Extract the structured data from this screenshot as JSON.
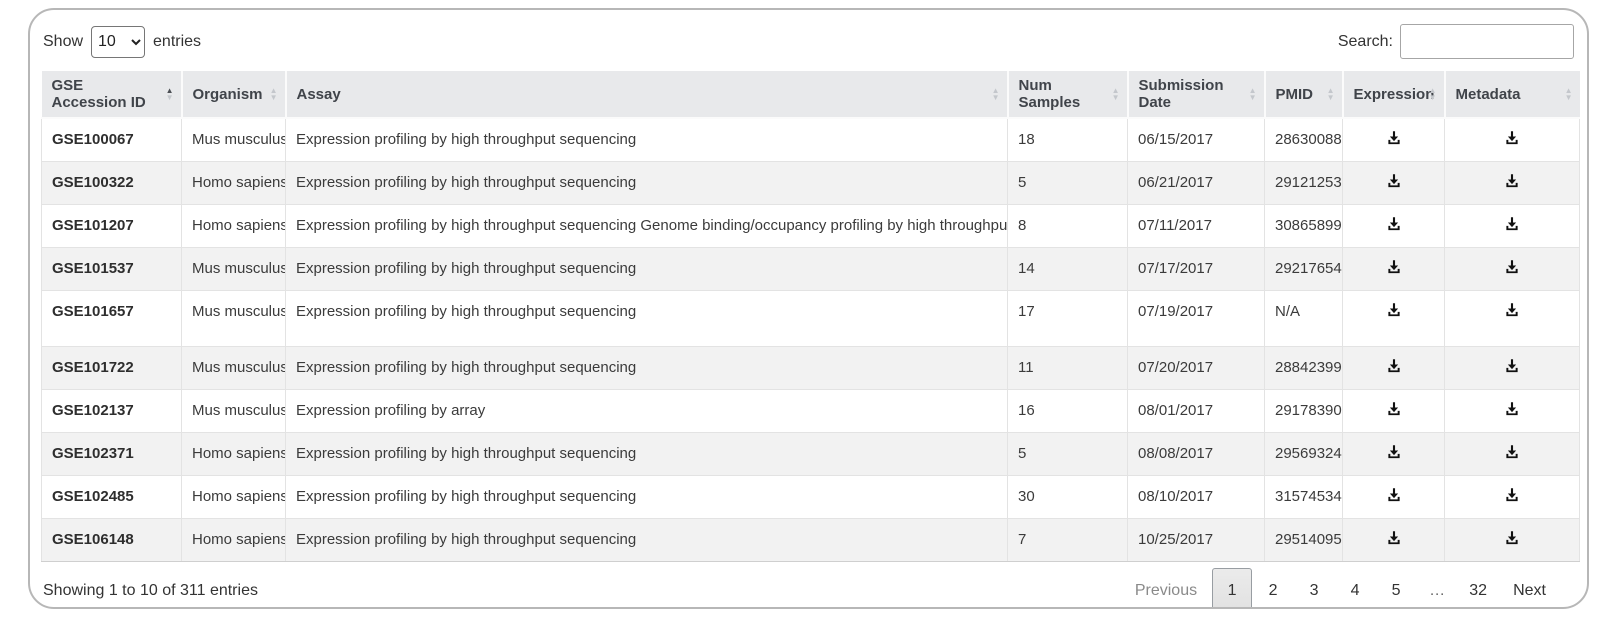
{
  "controls": {
    "show_label": "Show",
    "entries_value": "10",
    "entries_label": "entries",
    "search_label": "Search:",
    "search_value": ""
  },
  "table": {
    "columns": [
      {
        "label": "GSE Accession ID",
        "sort": "asc"
      },
      {
        "label": "Organism",
        "sort": "none"
      },
      {
        "label": "Assay",
        "sort": "none"
      },
      {
        "label": "Num Samples",
        "sort": "none"
      },
      {
        "label": "Submission Date",
        "sort": "none"
      },
      {
        "label": "PMID",
        "sort": "none"
      },
      {
        "label": "Expression",
        "sort": "none"
      },
      {
        "label": "Metadata",
        "sort": "none"
      }
    ],
    "rows": [
      [
        "GSE100067",
        "Mus musculus",
        "Expression profiling by high throughput sequencing",
        "18",
        "06/15/2017",
        "28630088"
      ],
      [
        "GSE100322",
        "Homo sapiens",
        "Expression profiling by high throughput sequencing",
        "5",
        "06/21/2017",
        "29121253"
      ],
      [
        "GSE101207",
        "Homo sapiens",
        "Expression profiling by high throughput sequencing Genome binding/occupancy profiling by high throughput sequencing",
        "8",
        "07/11/2017",
        "30865899"
      ],
      [
        "GSE101537",
        "Mus musculus",
        "Expression profiling by high throughput sequencing",
        "14",
        "07/17/2017",
        "29217654"
      ],
      [
        "GSE101657",
        "Mus musculus",
        "Expression profiling by high throughput sequencing",
        "17",
        "07/19/2017",
        "N/A"
      ],
      [
        "GSE101722",
        "Mus musculus",
        "Expression profiling by high throughput sequencing",
        "11",
        "07/20/2017",
        "28842399"
      ],
      [
        "GSE102137",
        "Mus musculus",
        "Expression profiling by array",
        "16",
        "08/01/2017",
        "29178390"
      ],
      [
        "GSE102371",
        "Homo sapiens",
        "Expression profiling by high throughput sequencing",
        "5",
        "08/08/2017",
        "29569324"
      ],
      [
        "GSE102485",
        "Homo sapiens",
        "Expression profiling by high throughput sequencing",
        "30",
        "08/10/2017",
        "31574534"
      ],
      [
        "GSE106148",
        "Homo sapiens",
        "Expression profiling by high throughput sequencing",
        "7",
        "10/25/2017",
        "29514095"
      ]
    ],
    "download_icon": "download-icon"
  },
  "footer": {
    "info": "Showing 1 to 10 of 311 entries"
  },
  "pagination": {
    "previous_label": "Previous",
    "pages": [
      "1",
      "2",
      "3",
      "4",
      "5",
      "…",
      "32"
    ],
    "current_page": "1",
    "next_label": "Next"
  },
  "colors": {
    "header_bg": "#e8e9eb",
    "stripe_bg": "#f2f2f2",
    "card_border": "#b7b7b7",
    "icon": "#111111"
  }
}
